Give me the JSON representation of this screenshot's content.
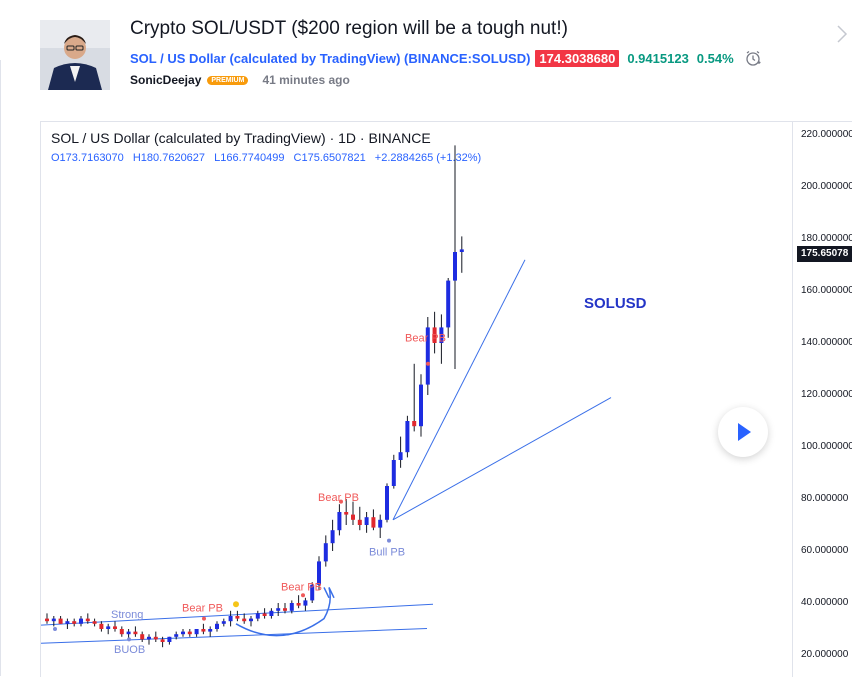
{
  "post": {
    "title": "Crypto SOL/USDT ($200 region will be a tough nut!)",
    "symbol_link": "SOL / US Dollar (calculated by TradingView) (BINANCE:SOLUSD)",
    "price": "174.3038680",
    "change_abs": "0.9415123",
    "change_pct": "0.54%",
    "author": "SonicDeejay",
    "badge": "PREMIUM",
    "time": "41 minutes ago",
    "icons": [
      "avatar",
      "alarm-clock-icon",
      "chevron-right-icon"
    ]
  },
  "chart": {
    "header": "SOL / US Dollar (calculated by TradingView) · 1D · BINANCE",
    "ohlc": {
      "open": "O173.7163070",
      "high": "H180.7620627",
      "low": "L166.7740499",
      "close": "C175.6507821",
      "change": "+2.2884265 (+1.32%)"
    },
    "annotation_text": "SOLUSD",
    "y_ticks": [
      "220.000000",
      "200.000000",
      "180.000000",
      "160.000000",
      "140.000000",
      "120.000000",
      "100.000000",
      "80.000000",
      "60.000000",
      "40.000000",
      "20.000000"
    ],
    "current_price_tag": "175.65078",
    "markers": [
      {
        "text": "Strong",
        "color": "#7b8bd9"
      },
      {
        "text": "BUOB",
        "color": "#7b8bd9"
      },
      {
        "text": "Bear PB",
        "color": "#f05a5a"
      },
      {
        "text": "Bear PB",
        "color": "#f05a5a"
      },
      {
        "text": "Bear PB",
        "color": "#f05a5a"
      },
      {
        "text": "Bull PB",
        "color": "#7b8bd9"
      },
      {
        "text": "Bear PB",
        "color": "#f05a5a"
      }
    ],
    "colors": {
      "up": "#1d2ce0",
      "down": "#e0282e",
      "line": "#3a6fe8"
    }
  }
}
